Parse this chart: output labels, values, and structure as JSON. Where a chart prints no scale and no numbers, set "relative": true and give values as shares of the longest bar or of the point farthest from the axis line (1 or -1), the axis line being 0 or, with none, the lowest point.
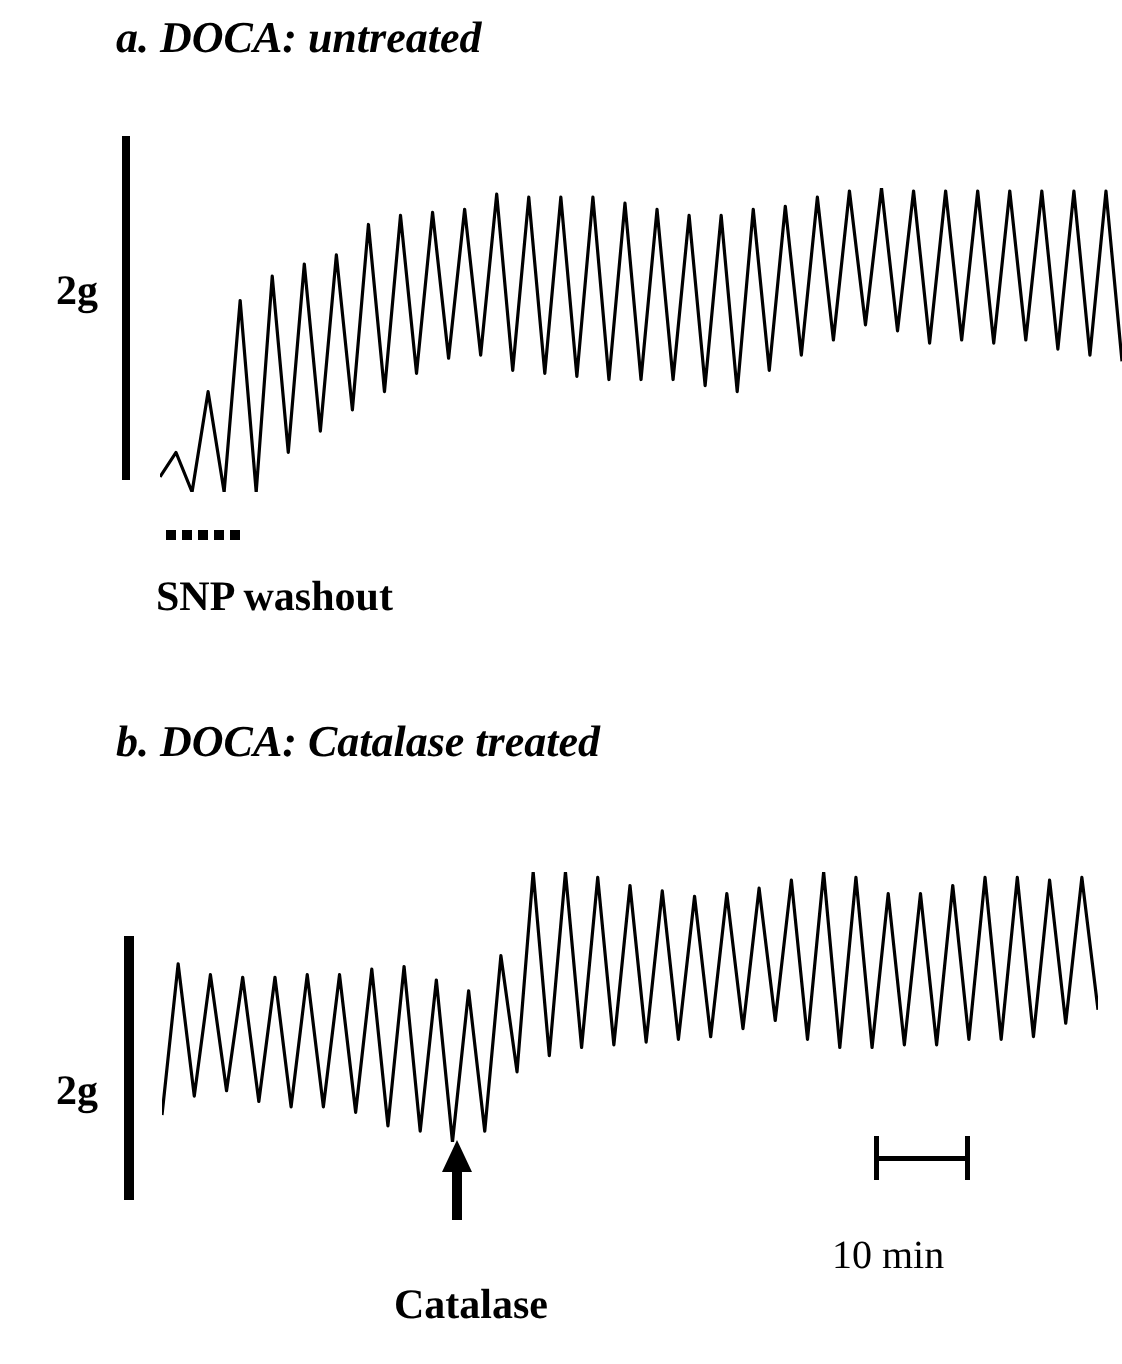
{
  "chart_data": [
    {
      "type": "line",
      "title": "a. DOCA: untreated",
      "relative": true,
      "color": "#000000",
      "categories": [
        null,
        null,
        null,
        null,
        null,
        null,
        null,
        null,
        null,
        null,
        null,
        null,
        null,
        null,
        null,
        null,
        null,
        null,
        null,
        null,
        null,
        null,
        null,
        null,
        null,
        null,
        null,
        null,
        null,
        null,
        null,
        null,
        null,
        null,
        null,
        null,
        null,
        null,
        null,
        null,
        null,
        null,
        null,
        null,
        null,
        null,
        null,
        null,
        null,
        null,
        null,
        null,
        null,
        null,
        null,
        null,
        null,
        null,
        null,
        null,
        null
      ],
      "values": [
        0.05,
        0.13,
        0,
        0.33,
        0,
        0.63,
        0,
        0.71,
        0.13,
        0.75,
        0.2,
        0.78,
        0.27,
        0.88,
        0.33,
        0.91,
        0.39,
        0.92,
        0.44,
        0.93,
        0.45,
        0.98,
        0.4,
        0.97,
        0.39,
        0.97,
        0.38,
        0.97,
        0.37,
        0.95,
        0.37,
        0.93,
        0.37,
        0.91,
        0.35,
        0.91,
        0.33,
        0.93,
        0.4,
        0.94,
        0.45,
        0.97,
        0.5,
        0.99,
        0.55,
        1.0,
        0.53,
        0.99,
        0.49,
        0.99,
        0.5,
        0.99,
        0.49,
        0.99,
        0.5,
        0.99,
        0.47,
        0.99,
        0.45,
        0.99,
        0.43
      ],
      "annotations": [
        "2g",
        "SNP washout"
      ]
    },
    {
      "type": "line",
      "title": "b. DOCA: Catalase treated",
      "relative": true,
      "color": "#000000",
      "categories": [
        null,
        null,
        null,
        null,
        null,
        null,
        null,
        null,
        null,
        null,
        null,
        null,
        null,
        null,
        null,
        null,
        null,
        null,
        null,
        null,
        null,
        null,
        null,
        null,
        null,
        null,
        null,
        null,
        null,
        null,
        null,
        null,
        null,
        null,
        null,
        null,
        null,
        null,
        null,
        null,
        null,
        null,
        null,
        null,
        null,
        null,
        null,
        null,
        null,
        null,
        null,
        null,
        null,
        null,
        null,
        null,
        null,
        null,
        null
      ],
      "values": [
        0.1,
        0.66,
        0.17,
        0.62,
        0.19,
        0.61,
        0.15,
        0.61,
        0.13,
        0.62,
        0.13,
        0.62,
        0.11,
        0.64,
        0.06,
        0.65,
        0.04,
        0.6,
        0,
        0.56,
        0.04,
        0.69,
        0.26,
        1.0,
        0.32,
        1.0,
        0.35,
        0.98,
        0.36,
        0.95,
        0.37,
        0.93,
        0.38,
        0.91,
        0.39,
        0.92,
        0.42,
        0.94,
        0.45,
        0.97,
        0.38,
        1.0,
        0.35,
        0.98,
        0.35,
        0.92,
        0.36,
        0.92,
        0.36,
        0.95,
        0.38,
        0.98,
        0.38,
        0.98,
        0.39,
        0.97,
        0.44,
        0.98,
        0.49
      ],
      "annotations": [
        "2g",
        "Catalase",
        "10 min"
      ]
    }
  ]
}
